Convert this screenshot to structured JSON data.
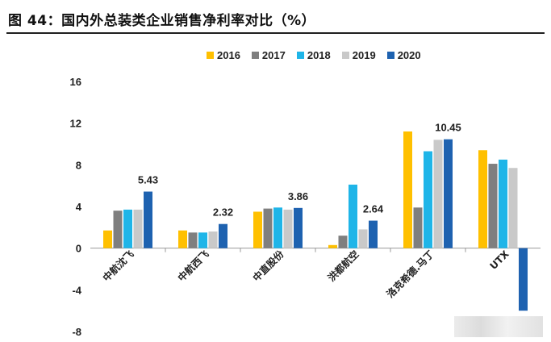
{
  "title": "图 44：国内外总装类企业销售净利率对比（%）",
  "colors": {
    "2016": "#ffc000",
    "2017": "#7f7f7f",
    "2018": "#1fb5e8",
    "2019": "#c9c9c9",
    "2020": "#1e62b0"
  },
  "chart_data": {
    "type": "bar",
    "title": "图 44：国内外总装类企业销售净利率对比（%）",
    "xlabel": "",
    "ylabel": "",
    "ylim": [
      -8,
      16
    ],
    "yticks": [
      "16",
      "12",
      "8",
      "4",
      "0",
      "-4",
      "-8"
    ],
    "ytick_values": [
      16,
      12,
      8,
      4,
      0,
      -4,
      -8
    ],
    "grid": false,
    "legend_position": "top",
    "categories": [
      "中航沈飞",
      "中航西飞",
      "中直股份",
      "洪都航空",
      "洛克希德.马丁",
      "UTX"
    ],
    "series": [
      {
        "name": "2016",
        "values": [
          1.7,
          1.7,
          3.5,
          0.3,
          11.2,
          9.4
        ]
      },
      {
        "name": "2017",
        "values": [
          3.6,
          1.5,
          3.8,
          1.2,
          3.9,
          8.1
        ]
      },
      {
        "name": "2018",
        "values": [
          3.7,
          1.5,
          3.9,
          6.1,
          9.3,
          8.5
        ]
      },
      {
        "name": "2019",
        "values": [
          3.7,
          1.6,
          3.7,
          1.8,
          10.4,
          7.7
        ]
      },
      {
        "name": "2020",
        "values": [
          5.43,
          2.32,
          3.86,
          2.64,
          10.45,
          -6.0
        ]
      }
    ],
    "data_labels": [
      "5.43",
      "2.32",
      "3.86",
      "2.64",
      "10.45",
      ""
    ]
  }
}
